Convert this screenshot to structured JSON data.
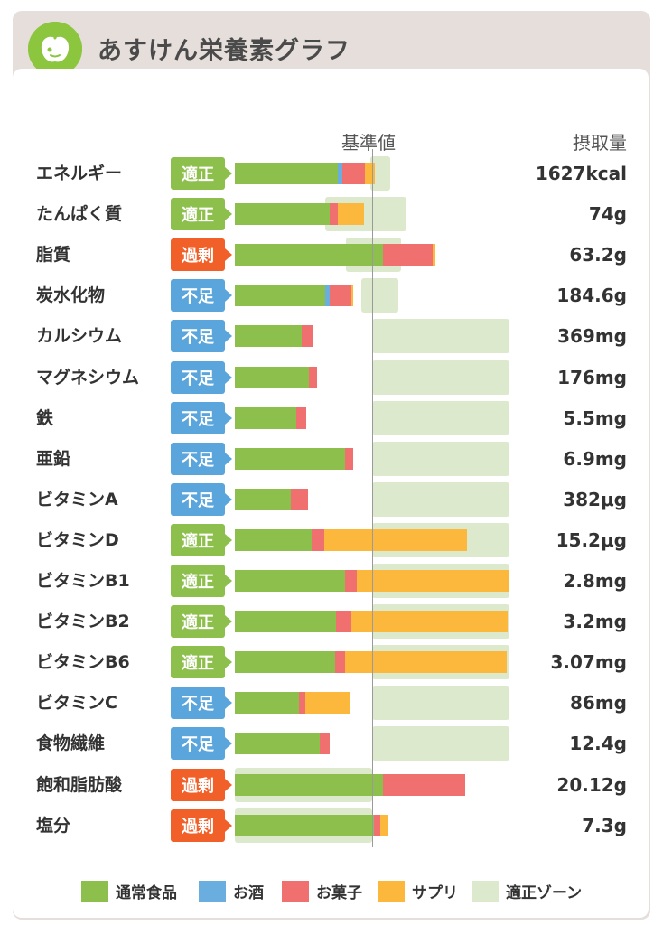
{
  "header": {
    "title": "あすけん栄養素グラフ"
  },
  "columns": {
    "reference_label": "基準値",
    "intake_label": "摂取量"
  },
  "colors": {
    "normal_food": "#8cbf4b",
    "alcohol": "#6aaee0",
    "snack": "#f07070",
    "supplement": "#fbb83c",
    "zone": "#dce9cc",
    "badge_ok": "#8cbf4b",
    "badge_low": "#5aa5dc",
    "badge_high": "#f2602a"
  },
  "legend": [
    {
      "label": "通常食品",
      "color_key": "normal_food"
    },
    {
      "label": "お酒",
      "color_key": "alcohol"
    },
    {
      "label": "お菓子",
      "color_key": "snack"
    },
    {
      "label": "サプリ",
      "color_key": "supplement"
    },
    {
      "label": "適正ゾーン",
      "color_key": "zone"
    }
  ],
  "chart_data": {
    "type": "bar",
    "stacked": true,
    "orientation": "horizontal",
    "series": [
      {
        "name": "通常食品",
        "key": "normal_food"
      },
      {
        "name": "お酒",
        "key": "alcohol"
      },
      {
        "name": "お菓子",
        "key": "snack"
      },
      {
        "name": "サプリ",
        "key": "supplement"
      }
    ],
    "reference_value": 100,
    "xlim": [
      0,
      200
    ],
    "unit": "% of reference",
    "rows": [
      {
        "name": "エネルギー",
        "status": "適正",
        "status_key": "badge_ok",
        "intake": "1627kcal",
        "zone": [
          99,
          113
        ],
        "parts": [
          75,
          3,
          17,
          7
        ]
      },
      {
        "name": "たんぱく質",
        "status": "適正",
        "status_key": "badge_ok",
        "intake": "74g",
        "zone": [
          66,
          125
        ],
        "parts": [
          69,
          0,
          6,
          19
        ]
      },
      {
        "name": "脂質",
        "status": "過剰",
        "status_key": "badge_high",
        "intake": "63.2g",
        "zone": [
          81,
          121
        ],
        "parts": [
          108,
          0,
          36,
          2
        ]
      },
      {
        "name": "炭水化物",
        "status": "不足",
        "status_key": "badge_low",
        "intake": "184.6g",
        "zone": [
          92,
          119
        ],
        "parts": [
          66,
          3,
          16,
          1
        ]
      },
      {
        "name": "カルシウム",
        "status": "不足",
        "status_key": "badge_low",
        "intake": "369mg",
        "zone": [
          100,
          200
        ],
        "parts": [
          49,
          0,
          8,
          0
        ]
      },
      {
        "name": "マグネシウム",
        "status": "不足",
        "status_key": "badge_low",
        "intake": "176mg",
        "zone": [
          100,
          200
        ],
        "parts": [
          54,
          0,
          6,
          0
        ]
      },
      {
        "name": "鉄",
        "status": "不足",
        "status_key": "badge_low",
        "intake": "5.5mg",
        "zone": [
          100,
          200
        ],
        "parts": [
          45,
          0,
          7,
          0
        ]
      },
      {
        "name": "亜鉛",
        "status": "不足",
        "status_key": "badge_low",
        "intake": "6.9mg",
        "zone": [
          100,
          200
        ],
        "parts": [
          80,
          0,
          6,
          0
        ]
      },
      {
        "name": "ビタミンA",
        "status": "不足",
        "status_key": "badge_low",
        "intake": "382μg",
        "zone": [
          100,
          200
        ],
        "parts": [
          41,
          0,
          12,
          0
        ]
      },
      {
        "name": "ビタミンD",
        "status": "適正",
        "status_key": "badge_ok",
        "intake": "15.2μg",
        "zone": [
          100,
          200
        ],
        "parts": [
          56,
          0,
          9,
          104
        ]
      },
      {
        "name": "ビタミンB1",
        "status": "適正",
        "status_key": "badge_ok",
        "intake": "2.8mg",
        "zone": [
          100,
          200
        ],
        "parts": [
          80,
          0,
          9,
          111
        ]
      },
      {
        "name": "ビタミンB2",
        "status": "適正",
        "status_key": "badge_ok",
        "intake": "3.2mg",
        "zone": [
          100,
          200
        ],
        "parts": [
          74,
          0,
          11,
          114
        ]
      },
      {
        "name": "ビタミンB6",
        "status": "適正",
        "status_key": "badge_ok",
        "intake": "3.07mg",
        "zone": [
          100,
          200
        ],
        "parts": [
          73,
          0,
          7,
          118
        ]
      },
      {
        "name": "ビタミンC",
        "status": "不足",
        "status_key": "badge_low",
        "intake": "86mg",
        "zone": [
          100,
          200
        ],
        "parts": [
          47,
          0,
          4,
          33
        ]
      },
      {
        "name": "食物繊維",
        "status": "不足",
        "status_key": "badge_low",
        "intake": "12.4g",
        "zone": [
          100,
          200
        ],
        "parts": [
          62,
          0,
          7,
          0
        ]
      },
      {
        "name": "飽和脂肪酸",
        "status": "過剰",
        "status_key": "badge_high",
        "intake": "20.12g",
        "zone": [
          0,
          100
        ],
        "parts": [
          108,
          0,
          60,
          0
        ]
      },
      {
        "name": "塩分",
        "status": "過剰",
        "status_key": "badge_high",
        "intake": "7.3g",
        "zone": [
          0,
          100
        ],
        "parts": [
          101,
          0,
          5,
          6
        ]
      }
    ]
  }
}
